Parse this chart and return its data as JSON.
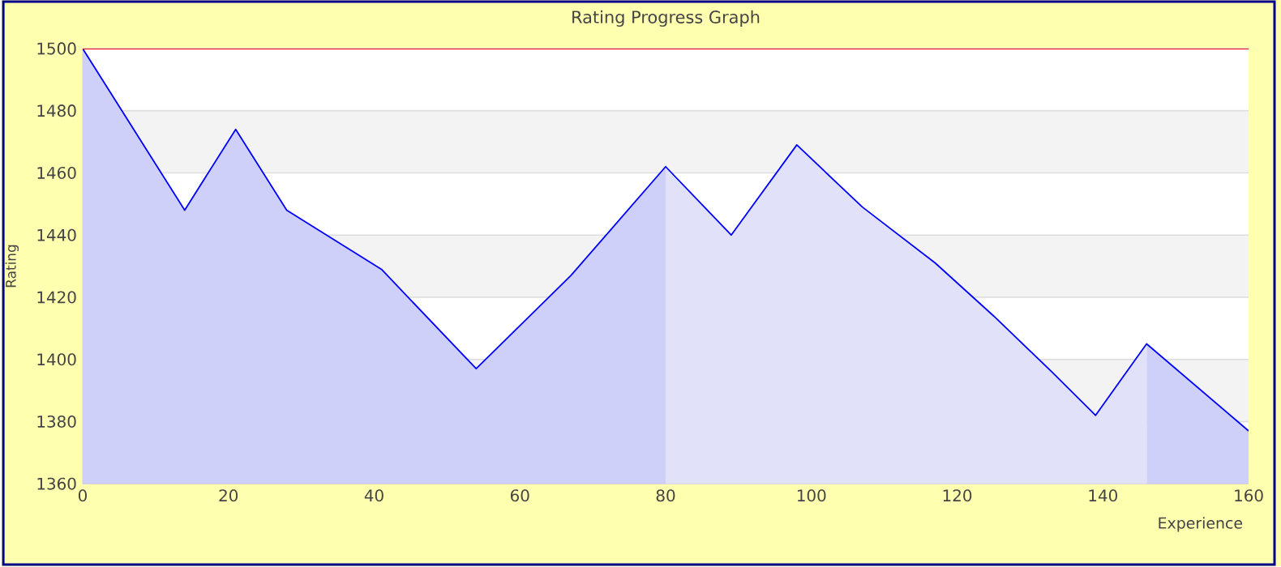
{
  "chart_data": {
    "type": "area",
    "title": "Rating Progress Graph",
    "xlabel": "Experience",
    "ylabel": "Rating",
    "xlim": [
      0,
      160
    ],
    "ylim": [
      1360,
      1500
    ],
    "xticks": [
      0,
      20,
      40,
      60,
      80,
      100,
      120,
      140,
      160
    ],
    "yticks": [
      1360,
      1380,
      1400,
      1420,
      1440,
      1460,
      1480,
      1500
    ],
    "grid": "y",
    "series": [
      {
        "color": "#cfd0fa",
        "x": [
          0,
          14,
          21,
          28,
          41,
          54,
          67,
          80
        ],
        "values": [
          1500,
          1448,
          1474,
          1448,
          1429,
          1397,
          1427,
          1462
        ]
      },
      {
        "color": "#e1e2fa",
        "x": [
          80,
          89,
          98,
          107,
          117,
          125,
          133,
          139,
          146
        ],
        "values": [
          1462,
          1440,
          1469,
          1449,
          1431,
          1414,
          1396,
          1382,
          1405
        ]
      },
      {
        "color": "#cfd0fa",
        "x": [
          146,
          160
        ],
        "values": [
          1405,
          1377
        ]
      },
      {
        "type": "line",
        "color": "#0000ff",
        "x": [
          0,
          14,
          21,
          28,
          41,
          54,
          67,
          80,
          89,
          98,
          107,
          117,
          125,
          133,
          139,
          146,
          160
        ],
        "values": [
          1500,
          1448,
          1474,
          1448,
          1429,
          1397,
          1427,
          1462,
          1440,
          1469,
          1449,
          1431,
          1414,
          1396,
          1382,
          1405,
          1377
        ]
      }
    ]
  }
}
